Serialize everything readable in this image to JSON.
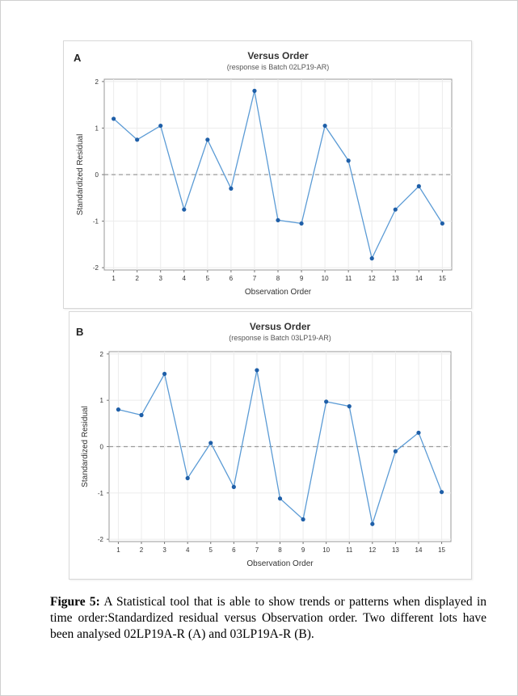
{
  "chart_data": [
    {
      "type": "line",
      "panel_label": "A",
      "title": "Versus Order",
      "subtitle": "(response is Batch 02LP19-AR)",
      "xlabel": "Observation Order",
      "ylabel": "Standardized Residual",
      "x": [
        1,
        2,
        3,
        4,
        5,
        6,
        7,
        8,
        9,
        10,
        11,
        12,
        13,
        14,
        15
      ],
      "y": [
        1.2,
        0.75,
        1.05,
        -0.75,
        0.75,
        -0.3,
        1.8,
        -0.98,
        -1.05,
        1.05,
        0.3,
        -1.8,
        -0.75,
        -0.25,
        -1.05
      ],
      "x_ticks": [
        "1",
        "2",
        "3",
        "4",
        "5",
        "6",
        "7",
        "8",
        "9",
        "10",
        "11",
        "12",
        "13",
        "14",
        "15"
      ],
      "y_ticks": [
        "-2",
        "-1",
        "0",
        "1",
        "2"
      ],
      "xlim": [
        0.6,
        15.4
      ],
      "ylim": [
        -2.05,
        2.05
      ],
      "reference_line": 0,
      "grid": true,
      "colors": {
        "line": "#5b9bd5",
        "marker": "#1f5fa8",
        "reference": "#9a9a9a",
        "grid": "#ececec"
      }
    },
    {
      "type": "line",
      "panel_label": "B",
      "title": "Versus Order",
      "subtitle": "(response is Batch 03LP19-AR)",
      "xlabel": "Observation Order",
      "ylabel": "Standardized Residual",
      "x": [
        1,
        2,
        3,
        4,
        5,
        6,
        7,
        8,
        9,
        10,
        11,
        12,
        13,
        14,
        15
      ],
      "y": [
        0.8,
        0.68,
        1.57,
        -0.68,
        0.08,
        -0.87,
        1.65,
        -1.12,
        -1.57,
        0.97,
        0.87,
        -1.67,
        -0.1,
        0.3,
        -0.98
      ],
      "x_ticks": [
        "1",
        "2",
        "3",
        "4",
        "5",
        "6",
        "7",
        "8",
        "9",
        "10",
        "11",
        "12",
        "13",
        "14",
        "15"
      ],
      "y_ticks": [
        "-2",
        "-1",
        "0",
        "1",
        "2"
      ],
      "xlim": [
        0.6,
        15.4
      ],
      "ylim": [
        -2.05,
        2.05
      ],
      "reference_line": 0,
      "grid": true,
      "colors": {
        "line": "#5b9bd5",
        "marker": "#1f5fa8",
        "reference": "#9a9a9a",
        "grid": "#ececec"
      }
    }
  ],
  "caption": {
    "label": "Figure 5:",
    "text": " A Statistical tool that is able to show trends or patterns when displayed in time order:Standardized residual versus Observation order. Two different lots have been analysed 02LP19A-R (A) and 03LP19A-R (B)."
  }
}
